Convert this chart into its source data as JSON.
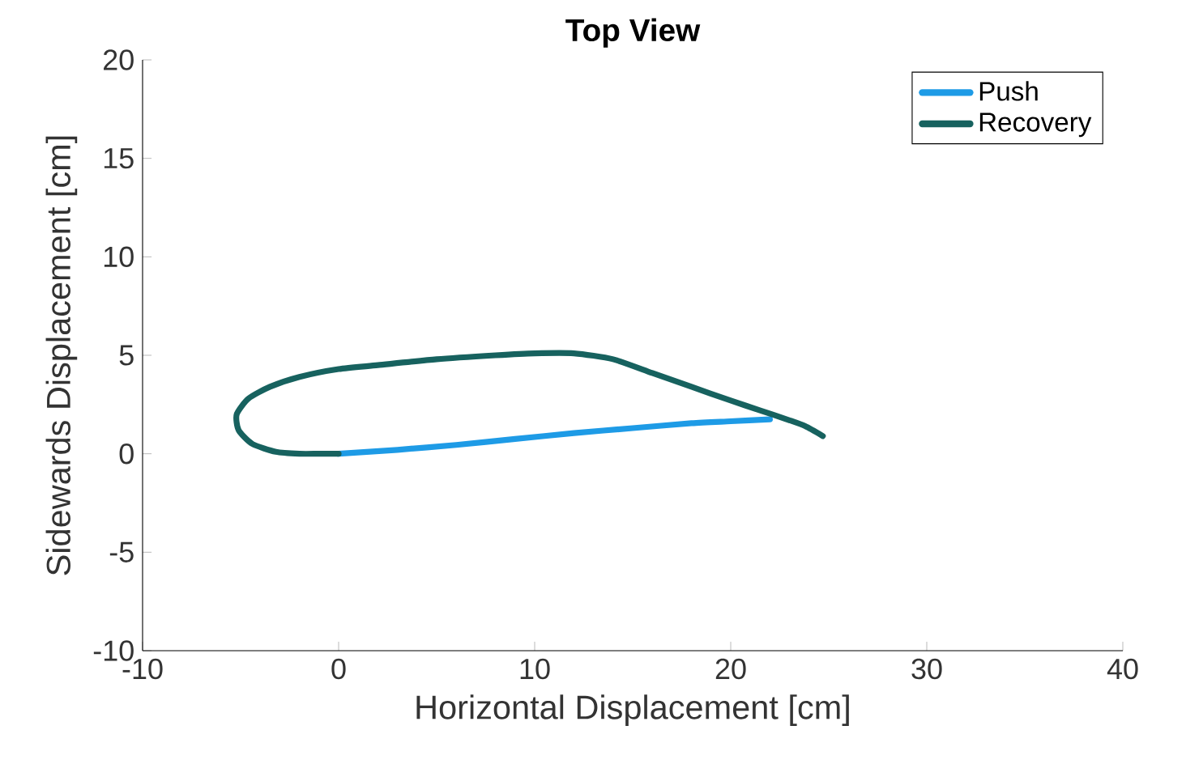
{
  "chart_data": {
    "type": "line",
    "title": "Top View",
    "xlabel": "Horizontal Displacement [cm]",
    "ylabel": "Sidewards Displacement [cm]",
    "xlim": [
      -10,
      40
    ],
    "ylim": [
      -10,
      20
    ],
    "xticks": [
      -10,
      0,
      10,
      20,
      30,
      40
    ],
    "yticks": [
      -10,
      -5,
      0,
      5,
      10,
      15,
      20
    ],
    "legend": "top right",
    "series": [
      {
        "name": "Push",
        "color": "#1e9be6",
        "x": [
          0,
          3,
          6,
          9,
          12,
          15,
          18,
          20,
          22
        ],
        "values": [
          0,
          0.2,
          0.45,
          0.75,
          1.05,
          1.3,
          1.55,
          1.65,
          1.75
        ]
      },
      {
        "name": "Recovery",
        "color": "#17625f",
        "x": [
          24.7,
          23.8,
          23,
          21.5,
          20,
          18,
          16,
          14,
          12,
          10,
          8,
          5,
          2,
          0,
          -2,
          -3.5,
          -4.6,
          -5.2,
          -5.1,
          -4.4,
          -3.2,
          -2,
          -1,
          0
        ],
        "values": [
          0.9,
          1.4,
          1.7,
          2.2,
          2.7,
          3.4,
          4.1,
          4.8,
          5.1,
          5.1,
          5.0,
          4.8,
          4.5,
          4.3,
          3.9,
          3.4,
          2.8,
          2.0,
          1.2,
          0.5,
          0.1,
          0,
          0,
          0
        ]
      }
    ]
  }
}
